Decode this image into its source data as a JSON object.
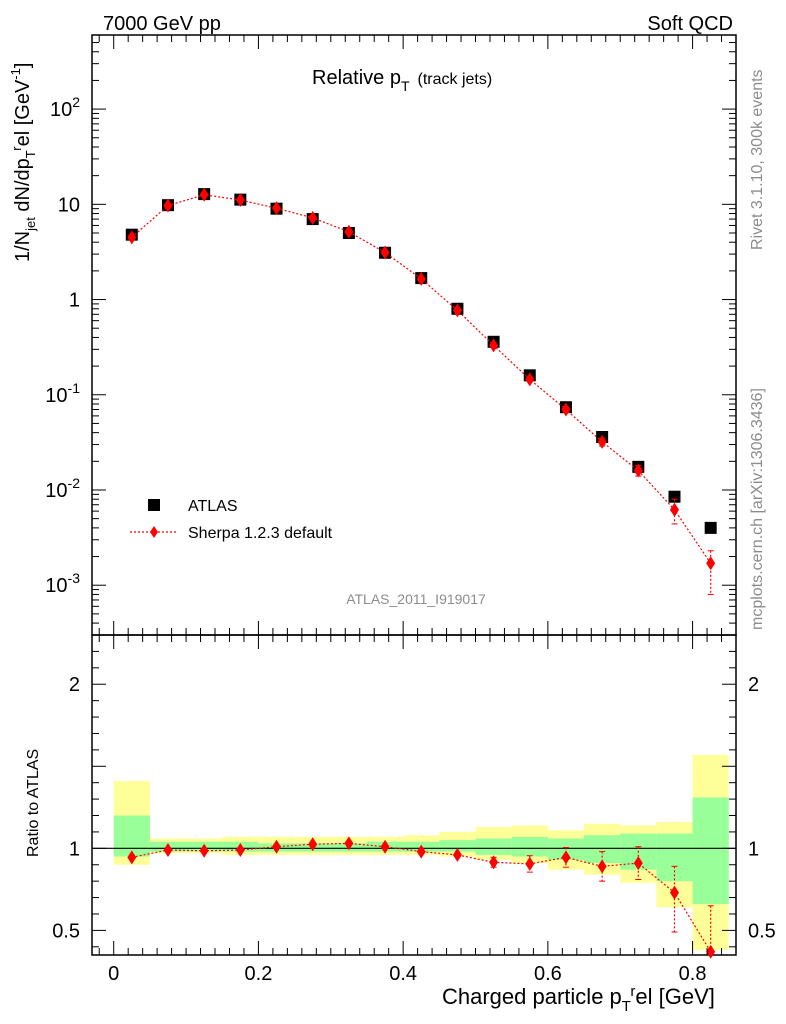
{
  "header": {
    "left": "7000 GeV pp",
    "right": "Soft QCD"
  },
  "side_labels": {
    "rivet": "Rivet 3.1.10,  300k events",
    "mcplots": "mcplots.cern.ch [arXiv:1306.3436]"
  },
  "analysis_id": "ATLAS_2011_I919017",
  "chart_data": [
    {
      "type": "scatter",
      "title": "Relative p_T (track jets)",
      "title_main": "Relative p",
      "title_sub": "T",
      "title_extra": "(track jets)",
      "ylabel": "1/N_jet dN/dp_T^rel [GeV^-1]",
      "y_scale": "log",
      "ylim": [
        0.0003,
        600
      ],
      "xlim": [
        -0.03,
        0.86
      ],
      "y_tick_labels": [
        "10^-3",
        "10^-2",
        "10^-1",
        "1",
        "10",
        "10^2"
      ],
      "legend": {
        "position": "bottom-left",
        "entries": [
          "ATLAS",
          "Sherpa 1.2.3 default"
        ]
      },
      "x": [
        0.025,
        0.075,
        0.125,
        0.175,
        0.225,
        0.275,
        0.325,
        0.375,
        0.425,
        0.475,
        0.525,
        0.575,
        0.625,
        0.675,
        0.725,
        0.775,
        0.825
      ],
      "series": [
        {
          "name": "ATLAS",
          "color": "#000000",
          "marker": "square",
          "values": [
            4.8,
            9.8,
            12.8,
            11.2,
            9.0,
            7.0,
            5.0,
            3.1,
            1.68,
            0.8,
            0.36,
            0.16,
            0.074,
            0.036,
            0.0175,
            0.0085,
            0.004
          ]
        },
        {
          "name": "Sherpa 1.2.3 default",
          "color": "#ff0000",
          "marker": "diamond",
          "line": "dotted",
          "values": [
            4.5,
            9.7,
            12.6,
            11.1,
            9.1,
            7.2,
            5.15,
            3.12,
            1.65,
            0.77,
            0.33,
            0.145,
            0.07,
            0.032,
            0.016,
            0.0062,
            0.0017
          ],
          "err_low": [
            0,
            0,
            0,
            0,
            0,
            0,
            0,
            0,
            0,
            0,
            0.015,
            0.008,
            0.005,
            0.003,
            0.002,
            0.0018,
            0.0009
          ],
          "err_high": [
            0,
            0,
            0,
            0,
            0,
            0,
            0,
            0,
            0,
            0,
            0.015,
            0.008,
            0.005,
            0.003,
            0.002,
            0.0018,
            0.0006
          ]
        }
      ]
    },
    {
      "type": "scatter",
      "ylabel": "Ratio to ATLAS",
      "ylim": [
        0.35,
        2.3
      ],
      "y_ticks": [
        0.5,
        1,
        2
      ],
      "xlabel": "Charged particle p_T^rel [GeV]",
      "xlim": [
        -0.03,
        0.86
      ],
      "x_ticks": [
        0,
        0.2,
        0.4,
        0.6,
        0.8
      ],
      "x_tick_labels": [
        "0",
        "0.2",
        "0.4",
        "0.6",
        "0.8"
      ],
      "bins": [
        [
          0.0,
          0.05
        ],
        [
          0.05,
          0.1
        ],
        [
          0.1,
          0.15
        ],
        [
          0.15,
          0.2
        ],
        [
          0.2,
          0.25
        ],
        [
          0.25,
          0.3
        ],
        [
          0.3,
          0.35
        ],
        [
          0.35,
          0.4
        ],
        [
          0.4,
          0.45
        ],
        [
          0.45,
          0.5
        ],
        [
          0.5,
          0.55
        ],
        [
          0.55,
          0.6
        ],
        [
          0.6,
          0.65
        ],
        [
          0.65,
          0.7
        ],
        [
          0.7,
          0.75
        ],
        [
          0.75,
          0.8
        ],
        [
          0.8,
          0.85
        ]
      ],
      "band_yellow": {
        "color": "#ffff99",
        "lo": [
          0.9,
          0.97,
          0.97,
          0.96,
          0.96,
          0.96,
          0.96,
          0.96,
          0.96,
          0.95,
          0.93,
          0.91,
          0.87,
          0.84,
          0.79,
          0.64,
          0.38
        ],
        "hi": [
          1.41,
          1.06,
          1.06,
          1.07,
          1.07,
          1.07,
          1.07,
          1.07,
          1.08,
          1.1,
          1.13,
          1.14,
          1.11,
          1.15,
          1.14,
          1.16,
          1.57
        ]
      },
      "band_green": {
        "color": "#99ff99",
        "lo": [
          0.95,
          0.98,
          0.98,
          0.98,
          0.98,
          0.98,
          0.98,
          0.98,
          0.98,
          0.98,
          0.96,
          0.95,
          0.93,
          0.91,
          0.87,
          0.8,
          0.66
        ],
        "hi": [
          1.2,
          1.04,
          1.04,
          1.04,
          1.03,
          1.03,
          1.03,
          1.04,
          1.04,
          1.05,
          1.06,
          1.07,
          1.06,
          1.08,
          1.09,
          1.09,
          1.31
        ]
      },
      "reference_line": 1,
      "x": [
        0.025,
        0.075,
        0.125,
        0.175,
        0.225,
        0.275,
        0.325,
        0.375,
        0.425,
        0.475,
        0.525,
        0.575,
        0.625,
        0.675,
        0.725,
        0.775,
        0.825
      ],
      "series": [
        {
          "name": "Sherpa 1.2.3 default",
          "color": "#ff0000",
          "marker": "diamond",
          "line": "dotted",
          "values": [
            0.945,
            0.99,
            0.985,
            0.99,
            1.01,
            1.025,
            1.03,
            1.01,
            0.98,
            0.96,
            0.915,
            0.905,
            0.945,
            0.89,
            0.91,
            0.73,
            0.37
          ],
          "err_low": [
            0,
            0,
            0,
            0,
            0,
            0,
            0,
            0,
            0,
            0,
            0.03,
            0.05,
            0.06,
            0.09,
            0.1,
            0.24,
            0.24
          ],
          "err_high": [
            0,
            0,
            0,
            0,
            0,
            0,
            0,
            0,
            0,
            0,
            0.03,
            0.05,
            0.06,
            0.09,
            0.1,
            0.16,
            0.28
          ]
        }
      ]
    }
  ]
}
